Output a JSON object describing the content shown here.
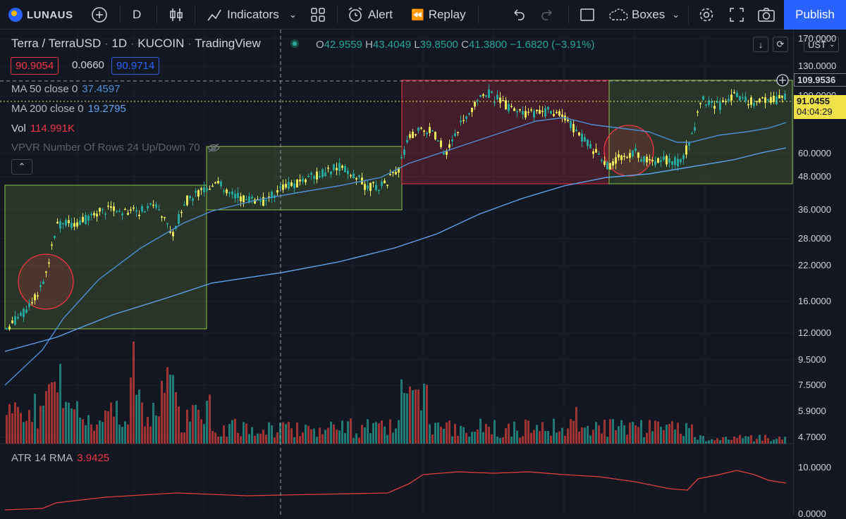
{
  "toolbar": {
    "logo": "LUNAUS",
    "interval": "D",
    "indicators": "Indicators",
    "alert": "Alert",
    "replay": "Replay",
    "boxes": "Boxes",
    "publish": "Publish"
  },
  "symbol": {
    "name": "Terra / TerraUSD",
    "interval": "1D",
    "exchange": "KUCOIN",
    "source": "TradingView",
    "dot": "·"
  },
  "ohlc": {
    "o_label": "O",
    "o": "42.9559",
    "h_label": "H",
    "h": "43.4049",
    "l_label": "L",
    "l": "39.8500",
    "c_label": "C",
    "c": "41.3800",
    "change": "−1.6820 (−3.91%)"
  },
  "quote": {
    "bid": "90.9054",
    "spread": "0.0660",
    "ask": "90.9714"
  },
  "indicators": {
    "ma50_label": "MA 50 close 0",
    "ma50_value": "37.4597",
    "ma200_label": "MA 200 close 0",
    "ma200_value": "19.2795",
    "vol_label": "Vol",
    "vol_value": "114.991K",
    "vpvr_label": "VPVR Number Of Rows 24 Up/Down 70",
    "atr_label": "ATR 14 RMA",
    "atr_value": "3.9425"
  },
  "axis": {
    "currency": "UST",
    "ticks": [
      "170.0000",
      "130.0000",
      "100.0000",
      "60.0000",
      "48.0000",
      "36.0000",
      "28.0000",
      "22.0000",
      "16.0000",
      "12.0000",
      "9.5000",
      "7.5000",
      "5.9000",
      "4.7000"
    ],
    "atr_ticks": [
      "10.0000",
      "0.0000"
    ],
    "crosshair_price": "109.9536",
    "last_price": "91.0455",
    "countdown": "04:04:29"
  },
  "colors": {
    "up": "#e8e85a",
    "down": "#26a69a",
    "ma50": "#4c8fd6",
    "ma200": "#5ea3ef",
    "box_green": "#8bc34a",
    "box_red": "#f23645",
    "accent": "#2962ff"
  }
}
